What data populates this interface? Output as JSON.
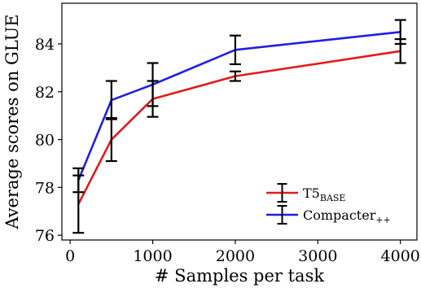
{
  "chart_data": {
    "type": "line",
    "xlabel": "# Samples per task",
    "ylabel": "Average scores on GLUE",
    "xlim": [
      -100,
      4200
    ],
    "ylim": [
      75.8,
      85.7
    ],
    "xticks": [
      0,
      1000,
      2000,
      3000,
      4000
    ],
    "yticks": [
      76,
      78,
      80,
      82,
      84
    ],
    "grid": false,
    "legend_position": "lower-right",
    "series": [
      {
        "name": "T5",
        "name_subscript": "BASE",
        "color": "#e41a1c",
        "x": [
          100,
          500,
          1000,
          2000,
          4000
        ],
        "y": [
          77.3,
          80.0,
          81.7,
          82.65,
          83.7
        ],
        "err": [
          1.2,
          0.9,
          0.75,
          0.2,
          0.5
        ]
      },
      {
        "name": "Compacter",
        "name_subscript": "++",
        "color": "#1f1fe6",
        "x": [
          100,
          500,
          1000,
          2000,
          4000
        ],
        "y": [
          78.3,
          81.65,
          82.3,
          83.75,
          84.5
        ],
        "err": [
          0.5,
          0.8,
          0.9,
          0.6,
          0.5
        ]
      }
    ]
  }
}
